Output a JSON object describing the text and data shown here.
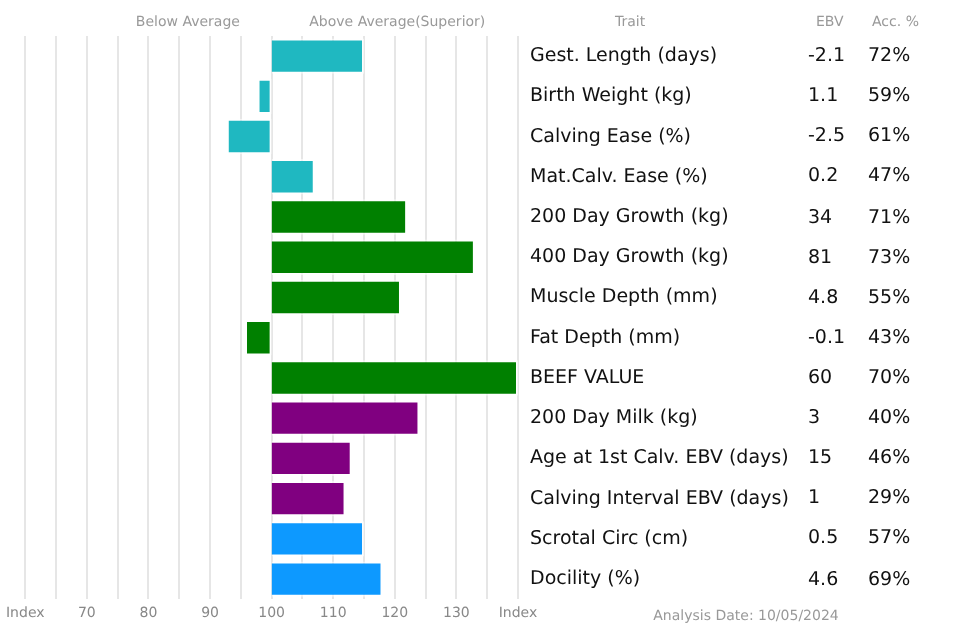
{
  "chart_data": [
    {
      "type": "bar",
      "orientation": "horizontal",
      "ylabel": "Trait",
      "categories": [
        "Gest. Length (days)",
        "Birth Weight (kg)",
        "Calving Ease (%)",
        "Mat.Calv. Ease (%)",
        "200 Day Growth (kg)",
        "400 Day Growth (kg)",
        "Muscle Depth (mm)",
        "Fat Depth (mm)",
        "BEEF VALUE",
        "200 Day Milk (kg)",
        "Age at 1st Calv. EBV (days)",
        "Calving Interval EBV (days)",
        "Scrotal Circ (cm)",
        "Docility (%)"
      ],
      "base": [
        100,
        100,
        100,
        100,
        100,
        100,
        100,
        100,
        100,
        100,
        100,
        100,
        100,
        100
      ],
      "values": [
        15,
        -2,
        -7,
        7,
        22,
        33,
        21,
        -4,
        40,
        24,
        13,
        12,
        15,
        18
      ],
      "colors": [
        "#1fb8c1",
        "#1fb8c1",
        "#1fb8c1",
        "#1fb8c1",
        "#008000",
        "#008000",
        "#008000",
        "#008000",
        "#008000",
        "#800080",
        "#800080",
        "#800080",
        "#0d99ff",
        "#0d99ff"
      ],
      "xlim": [
        60,
        140
      ],
      "xticks": [
        {
          "value": 60,
          "label": "Index"
        },
        {
          "value": 65,
          "label": null
        },
        70,
        {
          "value": 75,
          "label": null
        },
        80,
        {
          "value": 85,
          "label": null
        },
        90,
        {
          "value": 95,
          "label": null
        },
        100,
        {
          "value": 105,
          "label": null
        },
        110,
        {
          "value": 115,
          "label": null
        },
        120,
        {
          "value": 125,
          "label": null
        },
        130,
        {
          "value": 135,
          "label": null
        },
        {
          "value": 140,
          "label": "Index"
        }
      ],
      "grid": "x",
      "legend": false,
      "annotations": [
        "Below Average",
        "Above Average(Superior)",
        "Analysis Date: 10/05/2024"
      ]
    },
    {
      "type": "other",
      "categories": [
        "EBV",
        "Acc. %"
      ],
      "cell_labels": [
        [
          "-2.1",
          "72%"
        ],
        [
          "1.1",
          "59%"
        ],
        [
          "-2.5",
          "61%"
        ],
        [
          "0.2",
          "47%"
        ],
        [
          "34",
          "71%"
        ],
        [
          "81",
          "73%"
        ],
        [
          "4.8",
          "55%"
        ],
        [
          "-0.1",
          "43%"
        ],
        [
          "60",
          "70%"
        ],
        [
          "3",
          "40%"
        ],
        [
          "15",
          "46%"
        ],
        [
          "1",
          "29%"
        ],
        [
          "0.5",
          "57%"
        ],
        [
          "4.6",
          "69%"
        ]
      ]
    }
  ]
}
